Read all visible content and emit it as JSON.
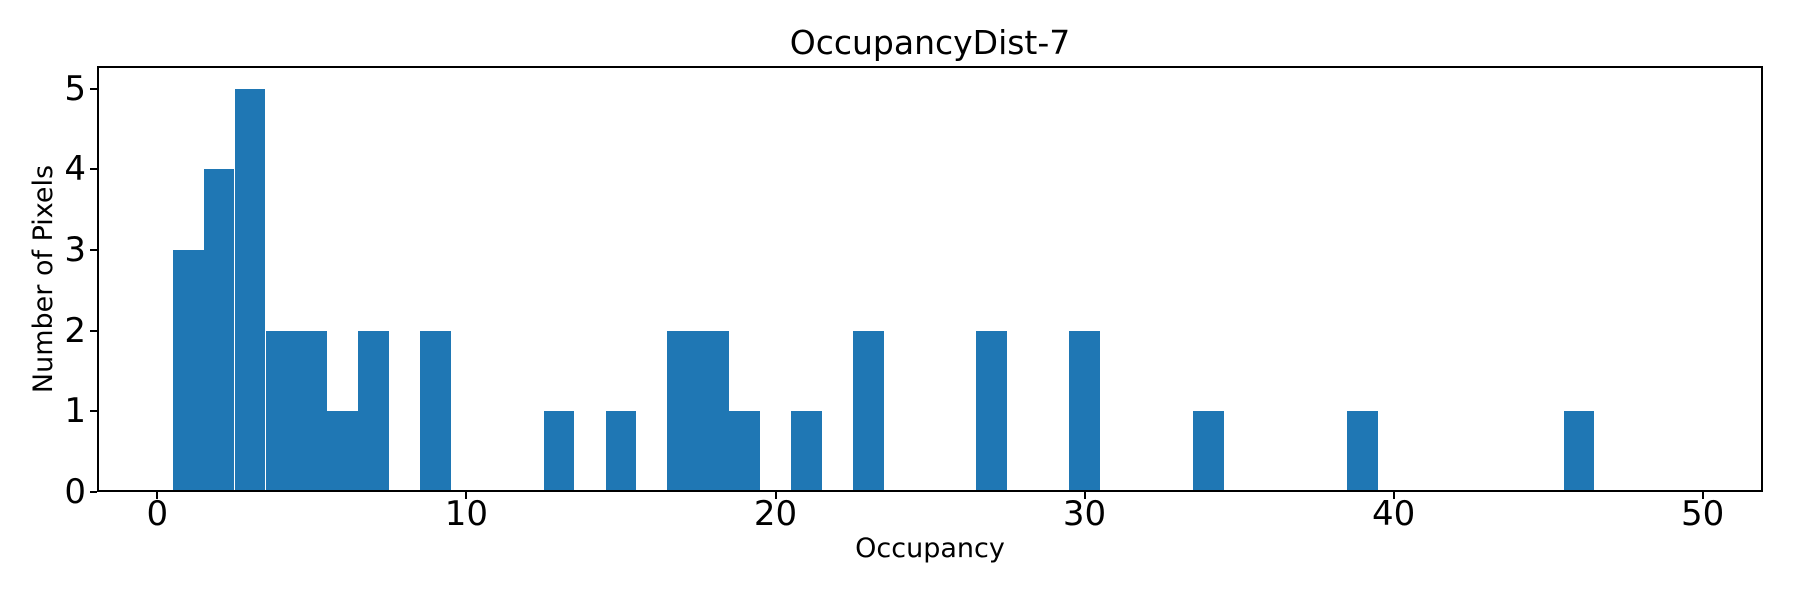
{
  "colors": {
    "bar": "#1f77b4",
    "axis": "#000000",
    "text": "#000000",
    "background": "#ffffff"
  },
  "chart_data": {
    "type": "bar",
    "subtype": "histogram",
    "title": "OccupancyDist-7",
    "xlabel": "Occupancy",
    "ylabel": "Number of Pixels",
    "bin_width": 1,
    "bar_centers": [
      1,
      2,
      3,
      4,
      5,
      6,
      7,
      9,
      13,
      15,
      17,
      18,
      19,
      21,
      23,
      27,
      30,
      34,
      39,
      46
    ],
    "bar_heights": [
      3,
      4,
      5,
      2,
      2,
      1,
      2,
      2,
      1,
      1,
      2,
      2,
      1,
      1,
      2,
      2,
      2,
      1,
      1,
      1
    ],
    "x_ticks": [
      0,
      10,
      20,
      30,
      40,
      50
    ],
    "y_ticks": [
      0,
      1,
      2,
      3,
      4,
      5
    ],
    "xlim": [
      -1.95,
      51.95
    ],
    "ylim": [
      0,
      5.28
    ],
    "grid": false,
    "legend_position": "none"
  }
}
